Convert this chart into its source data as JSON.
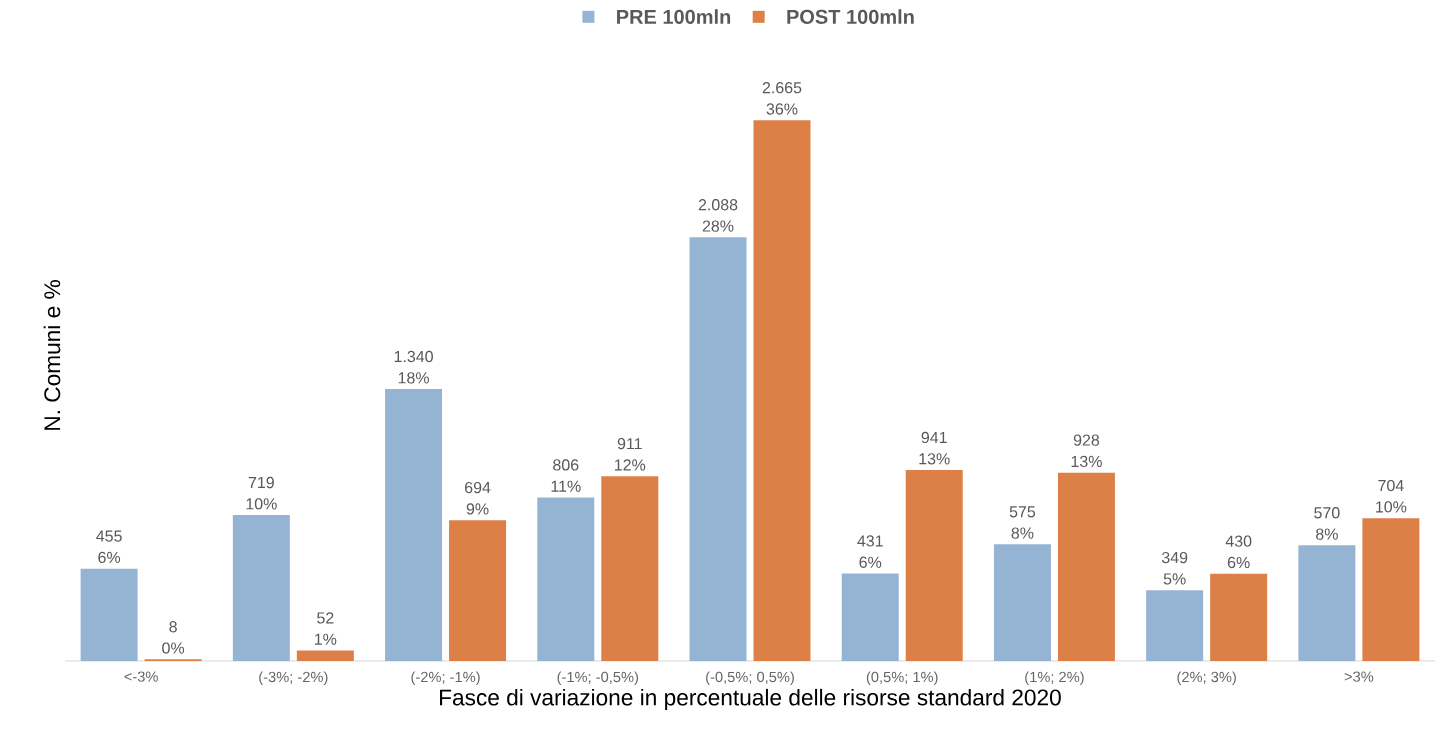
{
  "chart_data": {
    "type": "bar",
    "xlabel": "Fasce di variazione in percentuale delle risorse standard 2020",
    "ylabel": "N. Comuni e %",
    "categories": [
      "<-3%",
      "(-3%; -2%)",
      "(-2%; -1%)",
      "(-1%; -0,5%)",
      "(-0,5%; 0,5%)",
      "(0,5%; 1%)",
      "(1%; 2%)",
      "(2%; 3%)",
      ">3%"
    ],
    "series": [
      {
        "name": "PRE 100mln",
        "color": "#95b3d3",
        "values": [
          455,
          719,
          1340,
          806,
          2088,
          431,
          575,
          349,
          570
        ],
        "value_labels": [
          "455 6%",
          "719 10%",
          "1.340 18%",
          "806 11%",
          "2.088 28%",
          "431 6%",
          "575 8%",
          "349 5%",
          "570 8%"
        ]
      },
      {
        "name": "POST 100mln",
        "color": "#dd8047",
        "values": [
          8,
          52,
          694,
          911,
          2665,
          941,
          928,
          430,
          704
        ],
        "value_labels": [
          "8 0%",
          "52 1%",
          "694 9%",
          "911 12%",
          "2.665 36%",
          "941 13%",
          "928 13%",
          "430 6%",
          "704 10%"
        ]
      }
    ],
    "legend": "top"
  }
}
